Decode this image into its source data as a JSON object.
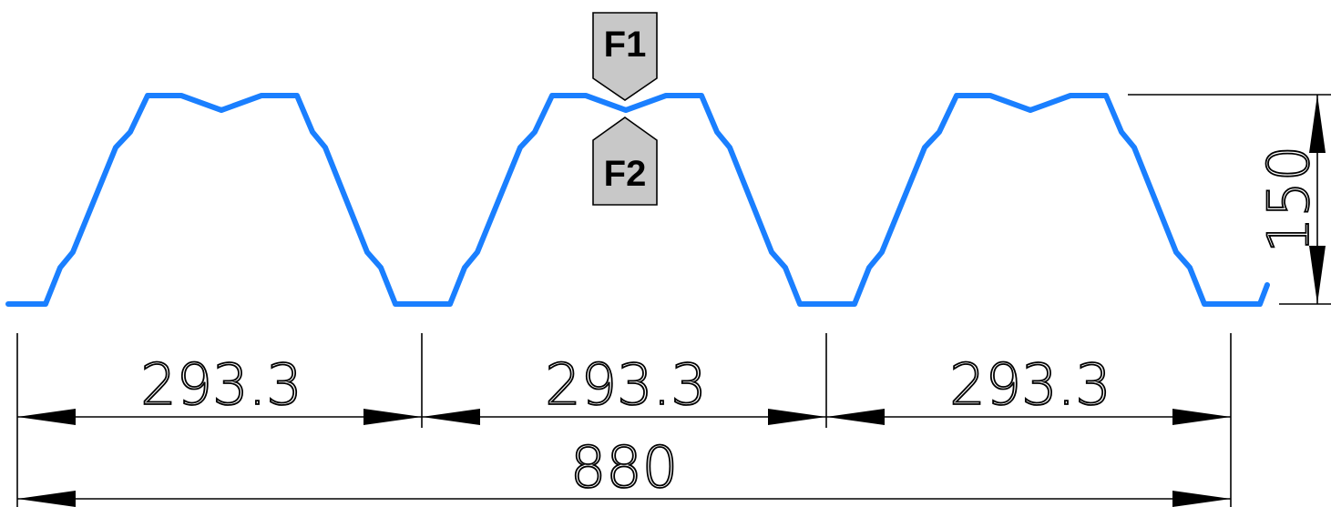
{
  "profile": {
    "color": "#1a7fff"
  },
  "loads": {
    "top": "F1",
    "bottom": "F2",
    "fill": "#c8c8c8"
  },
  "dimensions": {
    "rib_spacing": [
      "293.3",
      "293.3",
      "293.3"
    ],
    "total_width": "880",
    "height": "150"
  }
}
